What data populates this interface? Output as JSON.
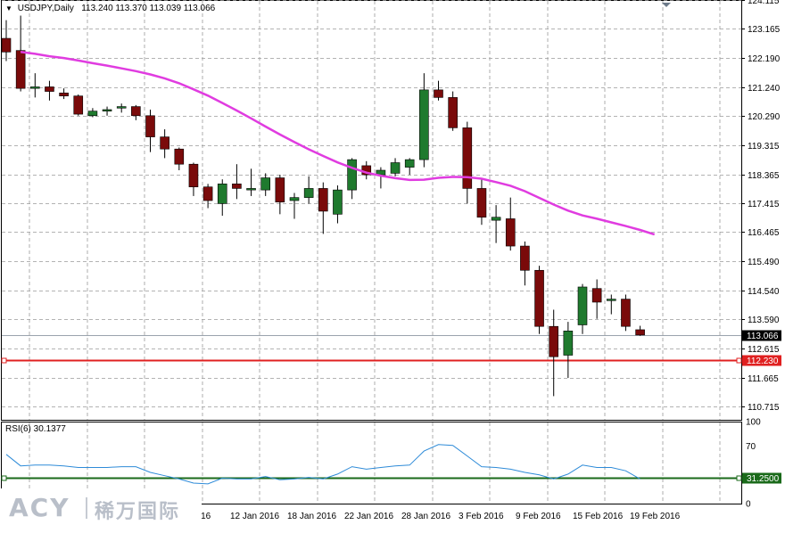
{
  "header": {
    "symbol_timeframe": "USDJPY,Daily",
    "open": "113.240",
    "high": "113.370",
    "low": "113.039",
    "close": "113.066"
  },
  "rsi_label": "RSI(6) 30.1377",
  "logo": {
    "brand": "ACY",
    "brand_cn": "稀万国际"
  },
  "colors": {
    "bull": "#1f7a2e",
    "bear": "#7a0a0a",
    "ma": "#e03ce0",
    "level_line": "#e02020",
    "rsi_line": "#2e8bd8",
    "rsi_level": "#1a6a1a",
    "grid": "#9a9a9a"
  },
  "chart_data": [
    {
      "type": "candlestick",
      "symbol": "USDJPY",
      "timeframe": "Daily",
      "ylim": [
        110.24,
        124.115
      ],
      "y_ticks": [
        "124.115",
        "123.165",
        "122.190",
        "121.240",
        "120.290",
        "119.315",
        "118.365",
        "117.415",
        "116.465",
        "115.490",
        "114.540",
        "113.590",
        "112.615",
        "111.665",
        "110.715"
      ],
      "x_tick_labels": [
        "12 Jan 2016",
        "18 Jan 2016",
        "22 Jan 2016",
        "28 Jan 2016",
        "3 Feb 2016",
        "9 Feb 2016",
        "15 Feb 2016",
        "19 Feb 2016"
      ],
      "current_price": "113.066",
      "horizontal_level": "112.230",
      "ohlc": [
        [
          122.85,
          123.45,
          122.1,
          122.4
        ],
        [
          122.45,
          123.6,
          121.1,
          121.2
        ],
        [
          121.2,
          121.7,
          120.9,
          121.25
        ],
        [
          121.25,
          121.45,
          120.8,
          121.1
        ],
        [
          121.05,
          121.2,
          120.85,
          120.95
        ],
        [
          120.95,
          121.0,
          120.3,
          120.35
        ],
        [
          120.3,
          120.55,
          120.25,
          120.45
        ],
        [
          120.45,
          120.6,
          120.3,
          120.5
        ],
        [
          120.55,
          120.7,
          120.4,
          120.6
        ],
        [
          120.6,
          120.65,
          120.15,
          120.3
        ],
        [
          120.3,
          120.5,
          119.1,
          119.6
        ],
        [
          119.6,
          119.85,
          118.9,
          119.2
        ],
        [
          119.2,
          119.25,
          118.5,
          118.7
        ],
        [
          118.7,
          118.75,
          117.65,
          117.95
        ],
        [
          117.95,
          118.05,
          117.25,
          117.5
        ],
        [
          117.4,
          118.2,
          117.0,
          118.05
        ],
        [
          118.05,
          118.7,
          117.55,
          117.9
        ],
        [
          117.85,
          118.55,
          117.65,
          117.9
        ],
        [
          117.85,
          118.4,
          117.65,
          118.25
        ],
        [
          118.25,
          118.35,
          117.05,
          117.45
        ],
        [
          117.5,
          117.75,
          116.9,
          117.6
        ],
        [
          117.6,
          118.3,
          117.4,
          117.9
        ],
        [
          117.9,
          118.1,
          116.4,
          117.15
        ],
        [
          117.05,
          118.0,
          116.75,
          117.85
        ],
        [
          117.85,
          118.9,
          117.55,
          118.85
        ],
        [
          118.65,
          118.8,
          118.2,
          118.35
        ],
        [
          118.35,
          118.6,
          117.9,
          118.5
        ],
        [
          118.4,
          118.9,
          118.3,
          118.75
        ],
        [
          118.6,
          118.9,
          118.35,
          118.85
        ],
        [
          118.85,
          121.7,
          118.6,
          121.15
        ],
        [
          121.15,
          121.45,
          120.8,
          120.9
        ],
        [
          120.9,
          121.1,
          119.8,
          119.9
        ],
        [
          119.9,
          120.1,
          117.4,
          117.9
        ],
        [
          117.9,
          118.2,
          116.7,
          116.95
        ],
        [
          116.85,
          117.35,
          116.1,
          116.95
        ],
        [
          116.9,
          117.6,
          115.85,
          116.0
        ],
        [
          116.0,
          116.15,
          114.7,
          115.2
        ],
        [
          115.2,
          115.35,
          113.1,
          113.35
        ],
        [
          113.35,
          113.9,
          111.05,
          112.35
        ],
        [
          112.4,
          113.5,
          111.65,
          113.2
        ],
        [
          113.4,
          114.75,
          113.1,
          114.65
        ],
        [
          114.6,
          114.9,
          113.6,
          114.15
        ],
        [
          114.2,
          114.4,
          113.75,
          114.25
        ],
        [
          114.25,
          114.4,
          113.2,
          113.35
        ],
        [
          113.24,
          113.37,
          113.039,
          113.066
        ]
      ],
      "ma_line": [
        122.4,
        122.34,
        122.26,
        122.2,
        122.12,
        122.03,
        121.95,
        121.86,
        121.77,
        121.66,
        121.53,
        121.37,
        121.17,
        120.96,
        120.72,
        120.47,
        120.21,
        119.94,
        119.68,
        119.43,
        119.19,
        118.97,
        118.76,
        118.58,
        118.42,
        118.32,
        118.24,
        118.18,
        118.19,
        118.25,
        118.28,
        118.27,
        118.22,
        118.11,
        117.99,
        117.81,
        117.59,
        117.37,
        117.17,
        117.01,
        116.9,
        116.78,
        116.66,
        116.53,
        116.38
      ]
    },
    {
      "type": "line",
      "name": "RSI(6) 30.1377",
      "ylim": [
        0,
        100
      ],
      "y_ticks": [
        "100",
        "70",
        "0"
      ],
      "level": "31.2500",
      "values": [
        60,
        46,
        47,
        47,
        46,
        44,
        44,
        44,
        45,
        45,
        38,
        34,
        30,
        25,
        24,
        31,
        30,
        30,
        33,
        29,
        30,
        32,
        30,
        36,
        45,
        42,
        44,
        46,
        47,
        64,
        72,
        71,
        58,
        45,
        44,
        42,
        38,
        35,
        30,
        36,
        47,
        44,
        44,
        40,
        30
      ]
    }
  ]
}
